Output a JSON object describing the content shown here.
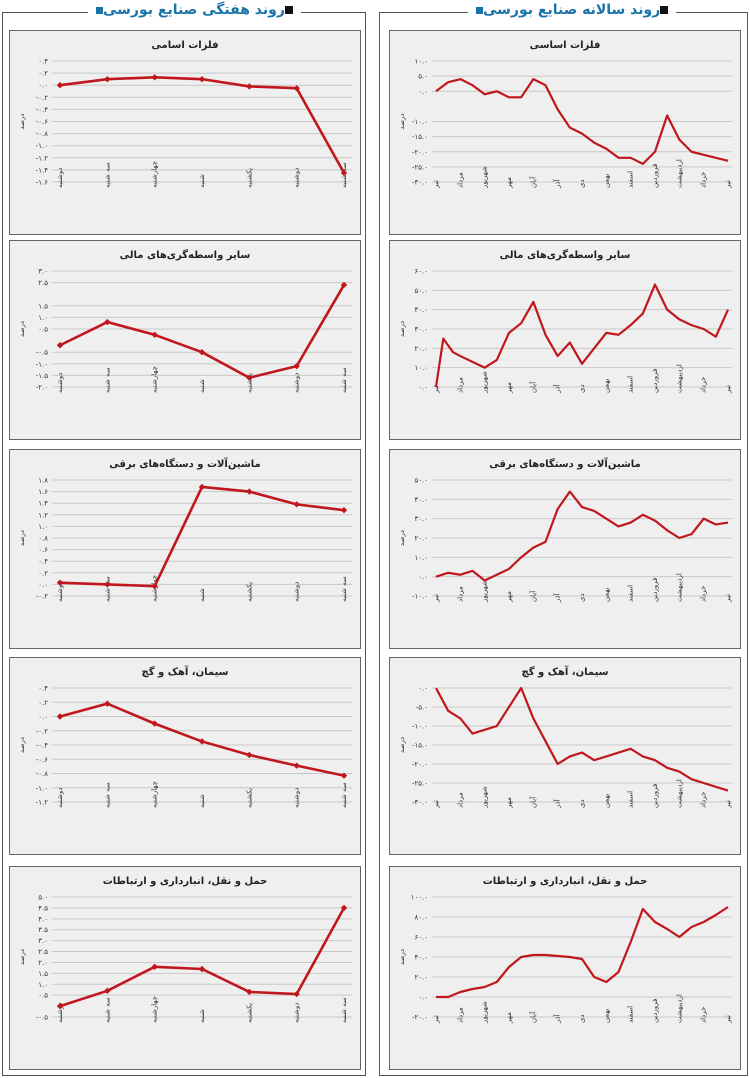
{
  "page": {
    "right_title": "روند سالانه صنایع بورسی",
    "left_title": "روند هفتگی صنایع بورسی"
  },
  "colors": {
    "line": "#c0171c",
    "grid": "#c8c8c8",
    "panel_bg": "#efefef",
    "title_blue": "#1a73a8"
  },
  "weekly_days": [
    "دوشنبه",
    "سه شنبه",
    "چهارشنبه",
    "شنبه",
    "یکشنبه",
    "دوشنبه",
    "سه شنبه"
  ],
  "annual_months": [
    "تیر",
    "مرداد",
    "شهریور",
    "مهر",
    "آبان",
    "آذر",
    "دی",
    "بهمن",
    "اسفند",
    "فروردین",
    "اردیبهشت",
    "خرداد",
    "تیر"
  ],
  "chart_data": [
    {
      "id": "w1",
      "type": "line",
      "title": "فلزات اسامی",
      "ylabel": "درصد",
      "categories": [
        "دوشنبه",
        "سه شنبه",
        "چهارشنبه",
        "شنبه",
        "یکشنبه",
        "دوشنبه",
        "سه شنبه"
      ],
      "values": [
        0.0,
        0.1,
        0.13,
        0.1,
        -0.02,
        -0.05,
        -1.45
      ],
      "ylim": [
        -1.6,
        0.4
      ],
      "yticks": [
        0.4,
        0.2,
        0.0,
        -0.2,
        -0.4,
        -0.6,
        -0.8,
        -1.0,
        -1.2,
        -1.4,
        -1.6
      ],
      "ytick_labels": [
        "۰.۴",
        "۰.۲",
        "۰.۰",
        "-۰.۲",
        "-۰.۴",
        "-۰.۶",
        "-۰.۸",
        "-۱.۰",
        "-۱.۲",
        "-۱.۴",
        "-۱.۶"
      ],
      "markers": true
    },
    {
      "id": "w2",
      "type": "line",
      "title": "سایر واسطه‌گری‌های مالی",
      "ylabel": "درصد",
      "categories": [
        "دوشنبه",
        "سه شنبه",
        "چهارشنبه",
        "شنبه",
        "یکشنبه",
        "دوشنبه",
        "سه شنبه"
      ],
      "values": [
        -0.2,
        0.8,
        0.25,
        -0.5,
        -1.6,
        -1.1,
        2.4
      ],
      "ylim": [
        -2.0,
        3.0
      ],
      "yticks": [
        3.0,
        2.5,
        1.5,
        1.0,
        0.5,
        -0.5,
        -1.0,
        -1.5,
        -2.0
      ],
      "ytick_labels": [
        "۳.۰",
        "۲.۵",
        "۱.۵",
        "۱.۰",
        "۰.۵",
        "-۰.۵",
        "-۱.۰",
        "-۱.۵",
        "-۲.۰"
      ],
      "markers": true
    },
    {
      "id": "w3",
      "type": "line",
      "title": "ماشین‌آلات و دستگاه‌های برقی",
      "ylabel": "درصد",
      "categories": [
        "دوشنبه",
        "سه شنبه",
        "چهارشنبه",
        "شنبه",
        "یکشنبه",
        "دوشنبه",
        "سه شنبه"
      ],
      "values": [
        0.03,
        0.0,
        -0.03,
        1.68,
        1.6,
        1.38,
        1.28
      ],
      "ylim": [
        -0.2,
        1.8
      ],
      "yticks": [
        1.8,
        1.6,
        1.4,
        1.2,
        1.0,
        0.8,
        0.6,
        0.4,
        0.2,
        0.0,
        -0.2
      ],
      "ytick_labels": [
        "۱.۸",
        "۱.۶",
        "۱.۴",
        "۱.۲",
        "۱.۰",
        "۰.۸",
        "۰.۶",
        "۰.۴",
        "۰.۲",
        "۰.۰",
        "-۰.۲"
      ],
      "markers": true
    },
    {
      "id": "w4",
      "type": "line",
      "title": "سیمان، آهک و گچ",
      "ylabel": "درصد",
      "categories": [
        "دوشنبه",
        "سه شنبه",
        "چهارشنبه",
        "شنبه",
        "یکشنبه",
        "دوشنبه",
        "سه شنبه"
      ],
      "values": [
        0.0,
        0.18,
        -0.1,
        -0.35,
        -0.54,
        -0.69,
        -0.83
      ],
      "ylim": [
        -1.2,
        0.4
      ],
      "yticks": [
        0.4,
        0.2,
        0.0,
        -0.2,
        -0.4,
        -0.6,
        -0.8,
        -1.0,
        -1.2
      ],
      "ytick_labels": [
        "۰.۴",
        "۰.۲",
        "۰.۰",
        "-۰.۲",
        "-۰.۴",
        "-۰.۶",
        "-۰.۸",
        "-۱.۰",
        "-۱.۲"
      ],
      "markers": true
    },
    {
      "id": "w5",
      "type": "line",
      "title": "حمل و نقل، انبارداری و ارتباطات",
      "ylabel": "درصد",
      "categories": [
        "دوشنبه",
        "سه شنبه",
        "چهارشنبه",
        "شنبه",
        "یکشنبه",
        "دوشنبه",
        "سه شنبه"
      ],
      "values": [
        0.0,
        0.7,
        1.8,
        1.7,
        0.65,
        0.55,
        4.5
      ],
      "ylim": [
        -0.5,
        5.0
      ],
      "yticks": [
        5.0,
        4.5,
        4.0,
        3.5,
        3.0,
        2.5,
        2.0,
        1.5,
        1.0,
        0.5,
        -0.5
      ],
      "ytick_labels": [
        "۵.۰",
        "۴.۵",
        "۴.۰",
        "۳.۵",
        "۳.۰",
        "۲.۵",
        "۲.۰",
        "۱.۵",
        "۱.۰",
        "۰.۵",
        "-۰.۵"
      ],
      "markers": true
    },
    {
      "id": "a1",
      "type": "line",
      "title": "فلزات اساسی",
      "ylabel": "درصد",
      "categories": [
        "تیر",
        "مرداد",
        "شهریور",
        "مهر",
        "آبان",
        "آذر",
        "دی",
        "بهمن",
        "اسفند",
        "فروردین",
        "اردیبهشت",
        "خرداد",
        "تیر"
      ],
      "x": [
        0,
        0.5,
        1,
        1.5,
        2,
        2.5,
        3,
        3.5,
        4,
        4.5,
        5,
        5.5,
        6,
        6.5,
        7,
        7.5,
        8,
        8.5,
        9,
        9.5,
        10,
        10.5,
        11,
        11.5,
        12
      ],
      "values": [
        0,
        3,
        4,
        2,
        -1,
        0,
        -2,
        -2,
        4,
        2,
        -6,
        -12,
        -14,
        -17,
        -19,
        -22,
        -22,
        -24,
        -20,
        -8,
        -16,
        -20,
        -21,
        -22,
        -23
      ],
      "ylim": [
        -30,
        10
      ],
      "yticks": [
        10,
        5,
        0,
        -10,
        -15,
        -20,
        -25,
        -30
      ],
      "ytick_labels": [
        "۱۰.۰",
        "۵.۰",
        "۰.۰",
        "-۱۰.۰",
        "-۱۵.۰",
        "-۲۰.۰",
        "-۲۵.۰",
        "-۳۰.۰"
      ],
      "markers": false
    },
    {
      "id": "a2",
      "type": "line",
      "title": "سایر واسطه‌گری‌های مالی",
      "ylabel": "درصد",
      "categories": [
        "تیر",
        "مرداد",
        "شهریور",
        "مهر",
        "آبان",
        "آذر",
        "دی",
        "بهمن",
        "اسفند",
        "فروردین",
        "اردیبهشت",
        "خرداد",
        "تیر"
      ],
      "x": [
        0,
        0.3,
        0.7,
        1,
        1.5,
        2,
        2.5,
        3,
        3.5,
        4,
        4.5,
        5,
        5.5,
        6,
        6.5,
        7,
        7.5,
        8,
        8.5,
        9,
        9.5,
        10,
        10.5,
        11,
        11.5,
        12
      ],
      "values": [
        0,
        25,
        18,
        16,
        13,
        10,
        14,
        28,
        33,
        44,
        27,
        16,
        23,
        12,
        20,
        28,
        27,
        32,
        38,
        53,
        40,
        35,
        32,
        30,
        26,
        40
      ],
      "ylim": [
        0,
        60
      ],
      "yticks": [
        60,
        50,
        40,
        30,
        20,
        10,
        0
      ],
      "ytick_labels": [
        "۶۰.۰",
        "۵۰.۰",
        "۴۰.۰",
        "۳۰.۰",
        "۲۰.۰",
        "۱۰.۰",
        "۰.۰"
      ],
      "markers": false
    },
    {
      "id": "a3",
      "type": "line",
      "title": "ماشین‌آلات و دستگاه‌های برقی",
      "ylabel": "درصد",
      "categories": [
        "تیر",
        "مرداد",
        "شهریور",
        "مهر",
        "آبان",
        "آذر",
        "دی",
        "بهمن",
        "اسفند",
        "فروردین",
        "اردیبهشت",
        "خرداد",
        "تیر"
      ],
      "x": [
        0,
        0.5,
        1,
        1.5,
        2,
        2.5,
        3,
        3.5,
        4,
        4.5,
        5,
        5.5,
        6,
        6.5,
        7,
        7.5,
        8,
        8.5,
        9,
        9.5,
        10,
        10.5,
        11,
        11.5,
        12
      ],
      "values": [
        0,
        2,
        1,
        3,
        -2,
        1,
        4,
        10,
        15,
        18,
        35,
        44,
        36,
        34,
        30,
        26,
        28,
        32,
        29,
        24,
        20,
        22,
        30,
        27,
        28
      ],
      "ylim": [
        -10,
        50
      ],
      "yticks": [
        50,
        40,
        30,
        20,
        10,
        0,
        -10
      ],
      "ytick_labels": [
        "۵۰.۰",
        "۴۰.۰",
        "۳۰.۰",
        "۲۰.۰",
        "۱۰.۰",
        "۰.۰",
        "-۱۰.۰"
      ],
      "markers": false
    },
    {
      "id": "a4",
      "type": "line",
      "title": "سیمان، آهک و گچ",
      "ylabel": "درصد",
      "categories": [
        "تیر",
        "مرداد",
        "شهریور",
        "مهر",
        "آبان",
        "آذر",
        "دی",
        "بهمن",
        "اسفند",
        "فروردین",
        "اردیبهشت",
        "خرداد",
        "تیر"
      ],
      "x": [
        0,
        0.5,
        1,
        1.5,
        2,
        2.5,
        3,
        3.5,
        4,
        4.5,
        5,
        5.5,
        6,
        6.5,
        7,
        7.5,
        8,
        8.5,
        9,
        9.5,
        10,
        10.5,
        11,
        11.5,
        12
      ],
      "values": [
        0,
        -6,
        -8,
        -12,
        -11,
        -10,
        -5,
        0,
        -8,
        -14,
        -20,
        -18,
        -17,
        -19,
        -18,
        -17,
        -16,
        -18,
        -19,
        -21,
        -22,
        -24,
        -25,
        -26,
        -27
      ],
      "ylim": [
        -30,
        0
      ],
      "yticks": [
        0,
        -5,
        -10,
        -15,
        -20,
        -25,
        -30
      ],
      "ytick_labels": [
        "۰.۰",
        "-۵.۰",
        "-۱۰.۰",
        "-۱۵.۰",
        "-۲۰.۰",
        "-۲۵.۰",
        "-۳۰.۰"
      ],
      "markers": false
    },
    {
      "id": "a5",
      "type": "line",
      "title": "حمل و نقل، انبارداری و ارتباطات",
      "ylabel": "درصد",
      "categories": [
        "تیر",
        "مرداد",
        "شهریور",
        "مهر",
        "آبان",
        "آذر",
        "دی",
        "بهمن",
        "اسفند",
        "فروردین",
        "اردیبهشت",
        "خرداد",
        "تیر"
      ],
      "x": [
        0,
        0.5,
        1,
        1.5,
        2,
        2.5,
        3,
        3.5,
        4,
        4.5,
        5,
        5.5,
        6,
        6.5,
        7,
        7.5,
        8,
        8.5,
        9,
        9.5,
        10,
        10.5,
        11,
        11.5,
        12
      ],
      "values": [
        0,
        0,
        5,
        8,
        10,
        15,
        30,
        40,
        42,
        42,
        41,
        40,
        38,
        20,
        15,
        25,
        55,
        88,
        75,
        68,
        60,
        70,
        75,
        82,
        90
      ],
      "ylim": [
        -20,
        100
      ],
      "yticks": [
        100,
        80,
        60,
        40,
        20,
        0,
        -20
      ],
      "ytick_labels": [
        "۱۰۰.۰",
        "۸۰.۰",
        "۶۰.۰",
        "۴۰.۰",
        "۲۰.۰",
        "۰.۰",
        "-۲۰.۰"
      ],
      "markers": false
    }
  ]
}
